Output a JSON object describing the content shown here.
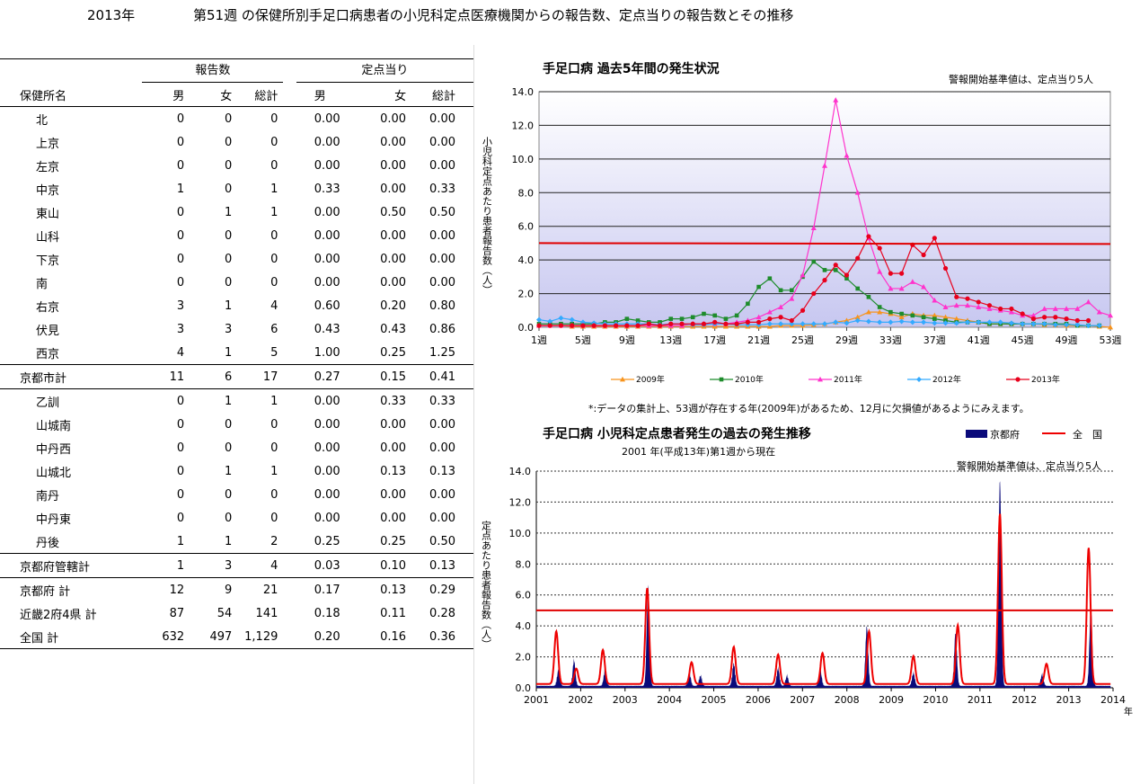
{
  "header": {
    "year": "2013年",
    "title": "第51週 の保健所別手足口病患者の小児科定点医療機関からの報告数、定点当りの報告数とその推移"
  },
  "table": {
    "group_reports": "報告数",
    "group_per_point": "定点当り",
    "col_name": "保健所名",
    "col_male": "男",
    "col_female": "女",
    "col_total": "総計",
    "col_rmale": "男",
    "col_rfemale": "女",
    "col_rtotal": "総計",
    "rows": [
      {
        "name": "北",
        "m": "0",
        "f": "0",
        "t": "0",
        "rm": "0.00",
        "rf": "0.00",
        "rt": "0.00",
        "indent": true
      },
      {
        "name": "上京",
        "m": "0",
        "f": "0",
        "t": "0",
        "rm": "0.00",
        "rf": "0.00",
        "rt": "0.00",
        "indent": true
      },
      {
        "name": "左京",
        "m": "0",
        "f": "0",
        "t": "0",
        "rm": "0.00",
        "rf": "0.00",
        "rt": "0.00",
        "indent": true
      },
      {
        "name": "中京",
        "m": "1",
        "f": "0",
        "t": "1",
        "rm": "0.33",
        "rf": "0.00",
        "rt": "0.33",
        "indent": true
      },
      {
        "name": "東山",
        "m": "0",
        "f": "1",
        "t": "1",
        "rm": "0.00",
        "rf": "0.50",
        "rt": "0.50",
        "indent": true
      },
      {
        "name": "山科",
        "m": "0",
        "f": "0",
        "t": "0",
        "rm": "0.00",
        "rf": "0.00",
        "rt": "0.00",
        "indent": true
      },
      {
        "name": "下京",
        "m": "0",
        "f": "0",
        "t": "0",
        "rm": "0.00",
        "rf": "0.00",
        "rt": "0.00",
        "indent": true
      },
      {
        "name": "南",
        "m": "0",
        "f": "0",
        "t": "0",
        "rm": "0.00",
        "rf": "0.00",
        "rt": "0.00",
        "indent": true
      },
      {
        "name": "右京",
        "m": "3",
        "f": "1",
        "t": "4",
        "rm": "0.60",
        "rf": "0.20",
        "rt": "0.80",
        "indent": true
      },
      {
        "name": "伏見",
        "m": "3",
        "f": "3",
        "t": "6",
        "rm": "0.43",
        "rf": "0.43",
        "rt": "0.86",
        "indent": true
      },
      {
        "name": "西京",
        "m": "4",
        "f": "1",
        "t": "5",
        "rm": "1.00",
        "rf": "0.25",
        "rt": "1.25",
        "indent": true
      },
      {
        "name": "京都市計",
        "m": "11",
        "f": "6",
        "t": "17",
        "rm": "0.27",
        "rf": "0.15",
        "rt": "0.41",
        "indent": false,
        "lines": true
      },
      {
        "name": "乙訓",
        "m": "0",
        "f": "1",
        "t": "1",
        "rm": "0.00",
        "rf": "0.33",
        "rt": "0.33",
        "indent": true
      },
      {
        "name": "山城南",
        "m": "0",
        "f": "0",
        "t": "0",
        "rm": "0.00",
        "rf": "0.00",
        "rt": "0.00",
        "indent": true
      },
      {
        "name": "中丹西",
        "m": "0",
        "f": "0",
        "t": "0",
        "rm": "0.00",
        "rf": "0.00",
        "rt": "0.00",
        "indent": true
      },
      {
        "name": "山城北",
        "m": "0",
        "f": "1",
        "t": "1",
        "rm": "0.00",
        "rf": "0.13",
        "rt": "0.13",
        "indent": true
      },
      {
        "name": "南丹",
        "m": "0",
        "f": "0",
        "t": "0",
        "rm": "0.00",
        "rf": "0.00",
        "rt": "0.00",
        "indent": true
      },
      {
        "name": "中丹東",
        "m": "0",
        "f": "0",
        "t": "0",
        "rm": "0.00",
        "rf": "0.00",
        "rt": "0.00",
        "indent": true
      },
      {
        "name": "丹後",
        "m": "1",
        "f": "1",
        "t": "2",
        "rm": "0.25",
        "rf": "0.25",
        "rt": "0.50",
        "indent": true
      },
      {
        "name": "京都府管轄計",
        "m": "1",
        "f": "3",
        "t": "4",
        "rm": "0.03",
        "rf": "0.10",
        "rt": "0.13",
        "indent": false,
        "lines": true
      },
      {
        "name": "京都府 計",
        "m": "12",
        "f": "9",
        "t": "21",
        "rm": "0.17",
        "rf": "0.13",
        "rt": "0.29",
        "indent": false
      },
      {
        "name": "近畿2府4県 計",
        "m": "87",
        "f": "54",
        "t": "141",
        "rm": "0.18",
        "rf": "0.11",
        "rt": "0.28",
        "indent": false
      },
      {
        "name": "全国 計",
        "m": "632",
        "f": "497",
        "t": "1,129",
        "rm": "0.20",
        "rf": "0.16",
        "rt": "0.36",
        "indent": false,
        "bottom": true
      }
    ]
  },
  "chart_data": [
    {
      "type": "line",
      "title": "手足口病 過去5年間の発生状況",
      "note": "警報開始基準値は、定点当り5人",
      "ylabel": "小児科定点あたり患者報告数（人）",
      "ylim": [
        0,
        14
      ],
      "yticks": [
        "0.0",
        "2.0",
        "4.0",
        "6.0",
        "8.0",
        "10.0",
        "12.0",
        "14.0"
      ],
      "xticks": [
        "1週",
        "5週",
        "9週",
        "13週",
        "17週",
        "21週",
        "25週",
        "29週",
        "33週",
        "37週",
        "41週",
        "45週",
        "49週",
        "53週"
      ],
      "threshold": 5,
      "footnote": "*:データの集計上、53週が存在する年(2009年)があるため、12月に欠損値があるようにみえます。",
      "series": [
        {
          "name": "2009年",
          "color": "#f7941d",
          "marker": "triangle",
          "values": [
            0.1,
            0.1,
            0.1,
            0.05,
            0.05,
            0.05,
            0.05,
            0.05,
            0.05,
            0.05,
            0.05,
            0.05,
            0.05,
            0.05,
            0.05,
            0.05,
            0.05,
            0.05,
            0.05,
            0.05,
            0.05,
            0.05,
            0.1,
            0.1,
            0.1,
            0.15,
            0.2,
            0.3,
            0.4,
            0.6,
            0.9,
            0.9,
            0.8,
            0.6,
            0.8,
            0.7,
            0.7,
            0.6,
            0.5,
            0.4,
            0.3,
            0.2,
            0.2,
            0.2,
            0.2,
            0.2,
            0.15,
            0.15,
            0.1,
            0.1,
            0.1,
            0.05,
            0
          ]
        },
        {
          "name": "2010年",
          "color": "#1e8c2c",
          "marker": "square",
          "values": [
            0.2,
            0.2,
            0.2,
            0.2,
            0.2,
            0.2,
            0.3,
            0.3,
            0.5,
            0.4,
            0.3,
            0.3,
            0.5,
            0.5,
            0.6,
            0.8,
            0.7,
            0.5,
            0.7,
            1.4,
            2.4,
            2.9,
            2.2,
            2.2,
            3.0,
            3.9,
            3.4,
            3.4,
            2.9,
            2.3,
            1.8,
            1.2,
            0.9,
            0.8,
            0.7,
            0.6,
            0.5,
            0.4,
            0.3,
            0.3,
            0.3,
            0.2,
            0.2,
            0.2,
            0.2,
            0.2,
            0.2,
            0.2,
            0.2,
            0.1,
            0.1,
            0.1
          ]
        },
        {
          "name": "2011年",
          "color": "#ff33cc",
          "marker": "triangle",
          "values": [
            0.1,
            0.1,
            0.1,
            0.1,
            0.1,
            0.1,
            0.1,
            0.1,
            0.1,
            0.1,
            0.1,
            0.1,
            0.1,
            0.1,
            0.2,
            0.2,
            0.2,
            0.2,
            0.3,
            0.4,
            0.6,
            0.9,
            1.2,
            1.7,
            3.1,
            5.9,
            9.6,
            13.5,
            10.2,
            8.0,
            5.3,
            3.3,
            2.3,
            2.3,
            2.7,
            2.4,
            1.6,
            1.2,
            1.3,
            1.3,
            1.2,
            1.1,
            1.0,
            0.9,
            0.7,
            0.7,
            1.1,
            1.1,
            1.1,
            1.1,
            1.5,
            0.9,
            0.7
          ]
        },
        {
          "name": "2012年",
          "color": "#33aaff",
          "marker": "diamond",
          "values": [
            0.45,
            0.35,
            0.55,
            0.45,
            0.3,
            0.25,
            0.2,
            0.2,
            0.2,
            0.2,
            0.2,
            0.15,
            0.2,
            0.2,
            0.15,
            0.15,
            0.2,
            0.2,
            0.15,
            0.15,
            0.15,
            0.2,
            0.2,
            0.2,
            0.2,
            0.2,
            0.2,
            0.3,
            0.25,
            0.4,
            0.35,
            0.3,
            0.3,
            0.35,
            0.3,
            0.3,
            0.25,
            0.25,
            0.25,
            0.3,
            0.3,
            0.3,
            0.3,
            0.25,
            0.2,
            0.2,
            0.2,
            0.15,
            0.15,
            0.15,
            0.1,
            0.1
          ]
        },
        {
          "name": "2013年",
          "color": "#e8001c",
          "marker": "circle",
          "values": [
            0.1,
            0.1,
            0.1,
            0.1,
            0.1,
            0.1,
            0.1,
            0.1,
            0.1,
            0.1,
            0.2,
            0.1,
            0.2,
            0.2,
            0.2,
            0.2,
            0.3,
            0.2,
            0.2,
            0.3,
            0.3,
            0.5,
            0.6,
            0.4,
            1.0,
            2.0,
            2.8,
            3.7,
            3.1,
            4.1,
            5.4,
            4.7,
            3.2,
            3.2,
            4.9,
            4.3,
            5.3,
            3.5,
            1.8,
            1.7,
            1.5,
            1.3,
            1.1,
            1.1,
            0.8,
            0.5,
            0.6,
            0.6,
            0.5,
            0.4,
            0.4
          ]
        }
      ]
    },
    {
      "type": "area",
      "title": "手足口病 小児科定点患者発生の過去の発生推移",
      "subtitle": "2001 年(平成13年)第1週から現在",
      "note": "警報開始基準値は、定点当り5人",
      "ylabel": "定点あたり患者報告数（人）",
      "ylim": [
        0,
        14
      ],
      "yticks": [
        "0.0",
        "2.0",
        "4.0",
        "6.0",
        "8.0",
        "10.0",
        "12.0",
        "14.0"
      ],
      "xticks": [
        "2001",
        "2002",
        "2003",
        "2004",
        "2005",
        "2006",
        "2007",
        "2008",
        "2009",
        "2010",
        "2011",
        "2012",
        "2013",
        "2014"
      ],
      "xunit": "年",
      "threshold": 5,
      "series": [
        {
          "name": "京都府",
          "color": "#0a0a7a",
          "peaks": [
            [
              2001.5,
              1.2
            ],
            [
              2001.85,
              1.8
            ],
            [
              2002.55,
              1.2
            ],
            [
              2003.52,
              6.6
            ],
            [
              2004.45,
              1.0
            ],
            [
              2004.7,
              0.8
            ],
            [
              2005.45,
              1.6
            ],
            [
              2006.45,
              1.3
            ],
            [
              2006.65,
              0.8
            ],
            [
              2007.4,
              1.2
            ],
            [
              2008.45,
              4.0
            ],
            [
              2009.5,
              1.0
            ],
            [
              2010.45,
              3.6
            ],
            [
              2011.45,
              13.5
            ],
            [
              2012.4,
              0.9
            ],
            [
              2013.5,
              5.3
            ]
          ]
        },
        {
          "name": "全　国",
          "color": "#ee0000",
          "peaks": [
            [
              2001.45,
              3.4
            ],
            [
              2001.9,
              1.0
            ],
            [
              2002.5,
              2.2
            ],
            [
              2003.5,
              6.2
            ],
            [
              2004.5,
              1.4
            ],
            [
              2005.45,
              2.4
            ],
            [
              2006.45,
              1.9
            ],
            [
              2007.45,
              2.0
            ],
            [
              2008.5,
              3.4
            ],
            [
              2009.5,
              1.8
            ],
            [
              2010.5,
              3.8
            ],
            [
              2011.45,
              11.0
            ],
            [
              2012.5,
              1.3
            ],
            [
              2013.45,
              8.8
            ]
          ]
        }
      ]
    }
  ]
}
